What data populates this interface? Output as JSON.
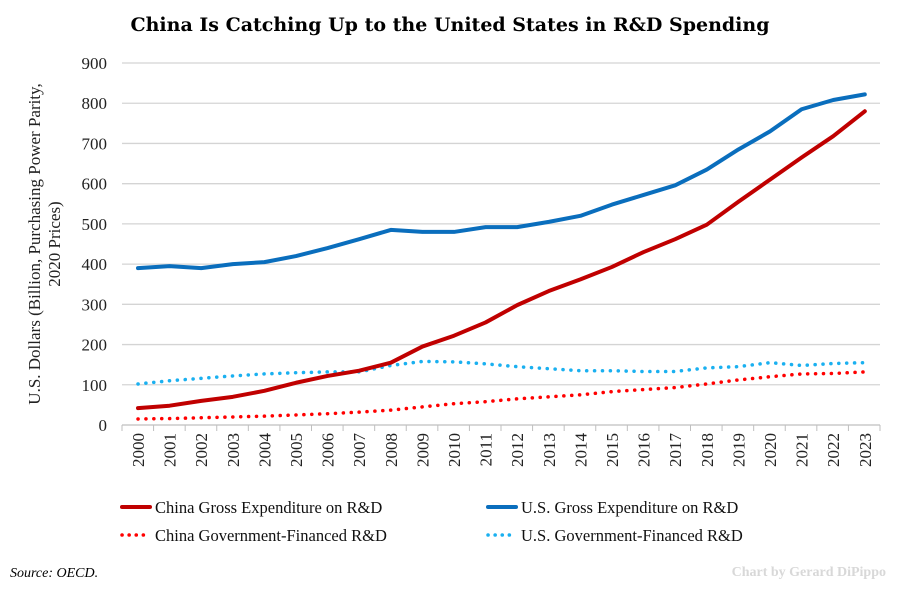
{
  "chart_data": {
    "type": "line",
    "title": "China Is Catching Up to the United States in R&D Spending",
    "ylabel": "U.S. Dollars (Billion, Purchasing Power Parity, 2020 Prices)",
    "xlabel": "",
    "ylim": [
      0,
      900
    ],
    "yticks": [
      0,
      100,
      200,
      300,
      400,
      500,
      600,
      700,
      800,
      900
    ],
    "x": [
      "2000",
      "2001",
      "2002",
      "2003",
      "2004",
      "2005",
      "2006",
      "2007",
      "2008",
      "2009",
      "2010",
      "2011",
      "2012",
      "2013",
      "2014",
      "2015",
      "2016",
      "2017",
      "2018",
      "2019",
      "2020",
      "2021",
      "2022",
      "2023"
    ],
    "grid": true,
    "legend_position": "bottom",
    "series": [
      {
        "name": "China Gross Expenditure on R&D",
        "color": "#C00000",
        "style": "solid",
        "values": [
          42,
          48,
          60,
          70,
          85,
          105,
          122,
          135,
          155,
          195,
          222,
          255,
          298,
          333,
          362,
          393,
          430,
          462,
          498,
          555,
          610,
          665,
          718,
          780
        ]
      },
      {
        "name": "U.S. Gross Expenditure on R&D",
        "color": "#0A6EBD",
        "style": "solid",
        "values": [
          390,
          395,
          390,
          400,
          405,
          420,
          440,
          462,
          485,
          480,
          480,
          492,
          492,
          505,
          520,
          548,
          572,
          596,
          635,
          685,
          730,
          785,
          808,
          822
        ]
      },
      {
        "name": "China Government-Financed R&D",
        "color": "#FF0000",
        "style": "dotted",
        "values": [
          15,
          16,
          18,
          20,
          22,
          25,
          28,
          32,
          37,
          45,
          53,
          58,
          65,
          70,
          75,
          83,
          88,
          93,
          102,
          112,
          120,
          127,
          128,
          132
        ]
      },
      {
        "name": "U.S. Government-Financed R&D",
        "color": "#1AB0F0",
        "style": "dotted",
        "values": [
          102,
          110,
          116,
          122,
          127,
          130,
          132,
          132,
          148,
          158,
          157,
          152,
          145,
          140,
          135,
          135,
          133,
          133,
          142,
          145,
          155,
          148,
          153,
          155
        ]
      }
    ]
  },
  "source": "Source: OECD.",
  "credit": "Chart by Gerard DiPippo"
}
